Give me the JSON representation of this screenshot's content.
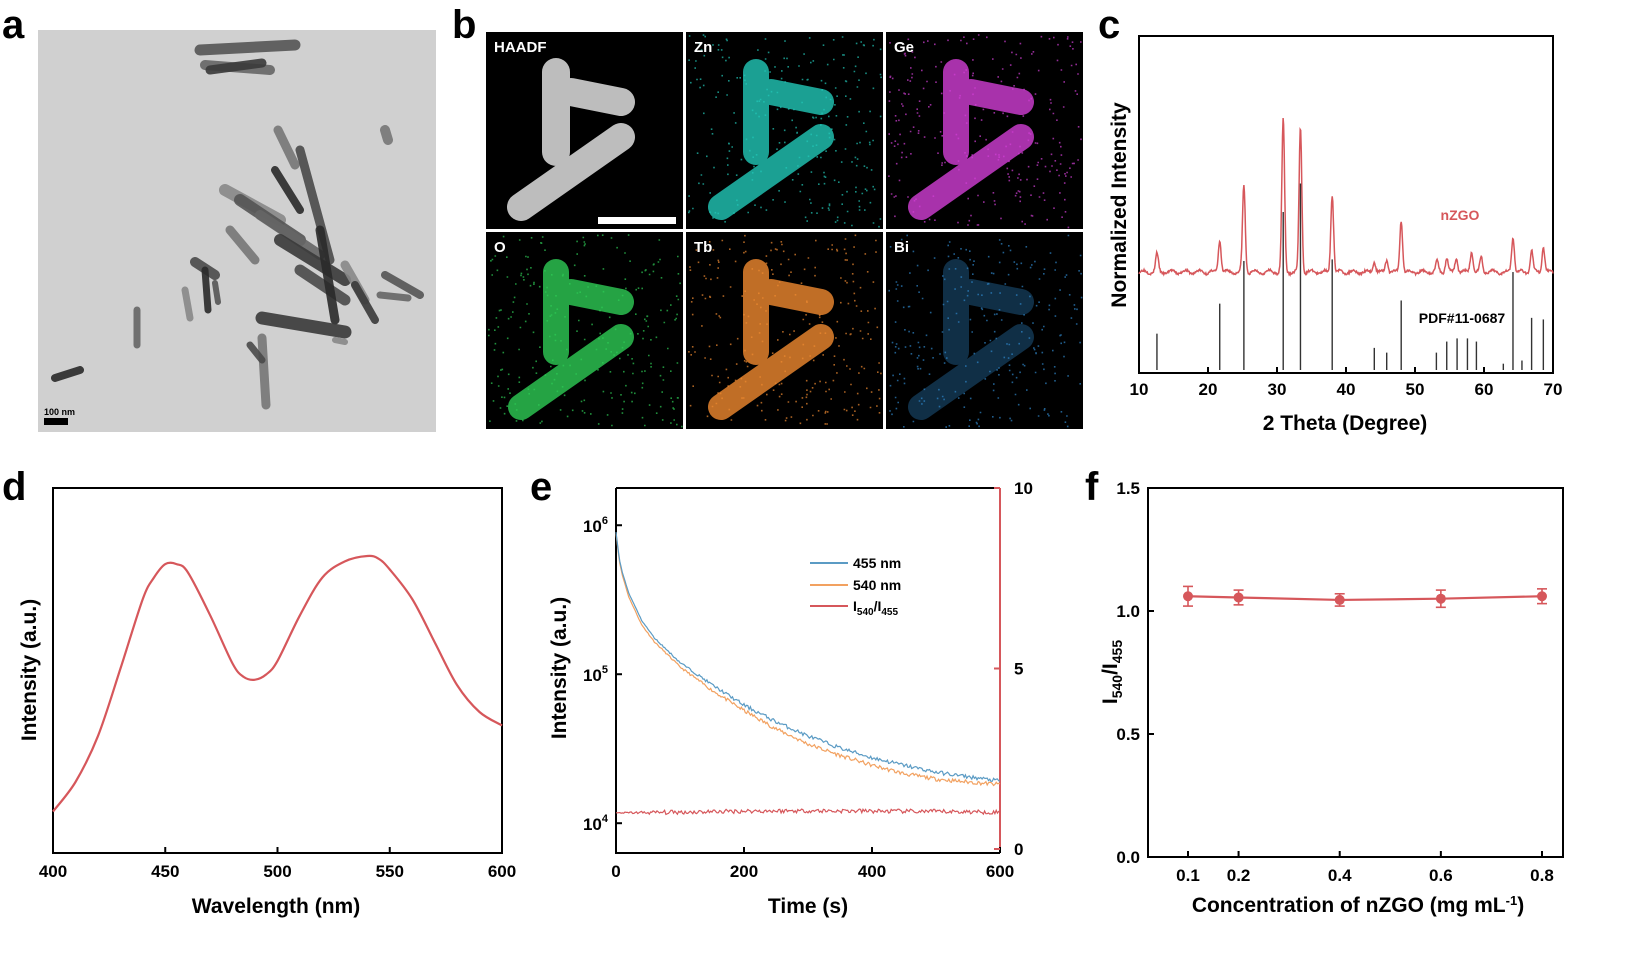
{
  "panels": {
    "a": "a",
    "b": "b",
    "c": "c",
    "d": "d",
    "e": "e",
    "f": "f"
  },
  "colors": {
    "red": "#d6575b",
    "blue": "#5b9bc4",
    "orange": "#f2a160",
    "black": "#000000"
  },
  "panel_a": {
    "scale_label": "100 nm"
  },
  "panel_b": {
    "maps": [
      {
        "label": "HAADF",
        "color": "#e6e6e6"
      },
      {
        "label": "Zn",
        "color": "#22c8b8"
      },
      {
        "label": "Ge",
        "color": "#d23ed6"
      },
      {
        "label": "O",
        "color": "#2ecc55"
      },
      {
        "label": "Tb",
        "color": "#f08a30"
      },
      {
        "label": "Bi",
        "color": "#2f86c9"
      }
    ]
  },
  "chart_data": [
    {
      "id": "c",
      "type": "line",
      "xlabel": "2 Theta (Degree)",
      "ylabel": "Normalized Intensity",
      "xlim": [
        10,
        70
      ],
      "xticks": [
        10,
        20,
        30,
        40,
        50,
        60,
        70
      ],
      "series": [
        {
          "name": "nZGO",
          "color": "#d6575b",
          "peaks": [
            [
              12.6,
              0.1
            ],
            [
              21.7,
              0.18
            ],
            [
              25.2,
              0.48
            ],
            [
              30.9,
              0.85
            ],
            [
              33.4,
              0.8
            ],
            [
              38.0,
              0.43
            ],
            [
              44.1,
              0.06
            ],
            [
              45.9,
              0.07
            ],
            [
              48.0,
              0.29
            ],
            [
              53.2,
              0.06
            ],
            [
              54.6,
              0.08
            ],
            [
              56.0,
              0.08
            ],
            [
              58.2,
              0.12
            ],
            [
              59.6,
              0.08
            ],
            [
              64.2,
              0.2
            ],
            [
              66.9,
              0.12
            ],
            [
              68.6,
              0.14
            ]
          ]
        }
      ],
      "reference": {
        "name": "PDF#11-0687",
        "lines": [
          [
            12.6,
            0.23
          ],
          [
            21.7,
            0.42
          ],
          [
            25.2,
            0.69
          ],
          [
            30.9,
            1.0
          ],
          [
            33.4,
            1.18
          ],
          [
            38.0,
            0.7
          ],
          [
            44.1,
            0.14
          ],
          [
            45.9,
            0.11
          ],
          [
            48.0,
            0.44
          ],
          [
            53.1,
            0.11
          ],
          [
            54.6,
            0.18
          ],
          [
            56.1,
            0.2
          ],
          [
            57.6,
            0.2
          ],
          [
            58.9,
            0.18
          ],
          [
            62.8,
            0.04
          ],
          [
            64.2,
            0.62
          ],
          [
            65.5,
            0.06
          ],
          [
            66.9,
            0.33
          ],
          [
            68.6,
            0.32
          ]
        ]
      }
    },
    {
      "id": "d",
      "type": "line",
      "xlabel": "Wavelength (nm)",
      "ylabel": "Intensity (a.u.)",
      "xlim": [
        400,
        600
      ],
      "xticks": [
        400,
        450,
        500,
        550,
        600
      ],
      "series": [
        {
          "name": "emission",
          "color": "#d6575b",
          "x": [
            400,
            410,
            420,
            430,
            440,
            445,
            450,
            455,
            460,
            470,
            480,
            485,
            490,
            495,
            500,
            510,
            520,
            530,
            540,
            545,
            550,
            560,
            570,
            580,
            590,
            600
          ],
          "y": [
            0.05,
            0.16,
            0.33,
            0.58,
            0.84,
            0.92,
            0.97,
            0.97,
            0.94,
            0.78,
            0.6,
            0.55,
            0.54,
            0.56,
            0.61,
            0.78,
            0.92,
            0.98,
            1.0,
            0.99,
            0.95,
            0.84,
            0.68,
            0.52,
            0.42,
            0.37
          ]
        }
      ]
    },
    {
      "id": "e",
      "type": "line",
      "xlabel": "Time (s)",
      "ylabel": "Intensity (a.u.)",
      "xlim": [
        0,
        600
      ],
      "xticks": [
        0,
        200,
        400,
        600
      ],
      "ylim_log10": [
        3.8,
        6.25
      ],
      "yticks": [
        "10^4",
        "10^5",
        "10^6"
      ],
      "y2lim": [
        0,
        10
      ],
      "y2ticks": [
        0,
        5,
        10
      ],
      "legend": [
        "455 nm",
        "540 nm",
        "I540/I455"
      ],
      "series": [
        {
          "name": "455 nm",
          "color": "#5b9bc4",
          "x": [
            0,
            5,
            10,
            20,
            40,
            60,
            100,
            150,
            200,
            250,
            300,
            350,
            400,
            450,
            500,
            550,
            600
          ],
          "y": [
            900000,
            600000,
            480000,
            350000,
            230000,
            175000,
            120000,
            85000,
            62000,
            48000,
            38500,
            32000,
            27500,
            24500,
            22000,
            20500,
            19200
          ]
        },
        {
          "name": "540 nm",
          "color": "#f2a160",
          "x": [
            0,
            5,
            10,
            20,
            40,
            60,
            100,
            150,
            200,
            250,
            300,
            350,
            400,
            450,
            500,
            550,
            600
          ],
          "y": [
            880000,
            580000,
            460000,
            330000,
            215000,
            165000,
            112000,
            78000,
            57000,
            43000,
            34000,
            28500,
            24500,
            21500,
            19800,
            18900,
            18200
          ]
        },
        {
          "name": "I540/I455",
          "color": "#d6575b",
          "axis": "right",
          "x": [
            0,
            50,
            100,
            200,
            300,
            400,
            500,
            600
          ],
          "y": [
            1.0,
            1.01,
            1.02,
            1.05,
            1.06,
            1.05,
            1.04,
            1.02
          ]
        }
      ]
    },
    {
      "id": "f",
      "type": "scatter",
      "xlabel": "Concentration of nZGO (mg mL⁻¹)",
      "ylabel": "I540/I455",
      "xlim": [
        0,
        0.85
      ],
      "xticks": [
        0.1,
        0.2,
        0.4,
        0.6,
        0.8
      ],
      "ylim": [
        0,
        1.5
      ],
      "yticks": [
        0.0,
        0.5,
        1.0,
        1.5
      ],
      "series": [
        {
          "name": "ratio",
          "color": "#d6575b",
          "x": [
            0.1,
            0.2,
            0.4,
            0.6,
            0.8
          ],
          "y": [
            1.06,
            1.055,
            1.045,
            1.05,
            1.06
          ],
          "err": [
            0.04,
            0.03,
            0.025,
            0.035,
            0.03
          ]
        }
      ]
    }
  ],
  "labels": {
    "c_nzgo": "nZGO",
    "c_pdf": "PDF#11-0687",
    "c_ylabel": "Normalized Intensity",
    "c_xlabel": "2 Theta (Degree)",
    "d_ylabel": "Intensity (a.u.)",
    "d_xlabel": "Wavelength (nm)",
    "e_ylabel": "Intensity (a.u.)",
    "e_xlabel": "Time (s)",
    "e_leg1": "455 nm",
    "e_leg2": "540 nm",
    "e_leg3_main": "I",
    "e_leg3_sub1": "540",
    "e_leg3_sep": "/I",
    "e_leg3_sub2": "455",
    "f_ylabel_main": "I",
    "f_ylabel_sub1": "540",
    "f_ylabel_sep": "/I",
    "f_ylabel_sub2": "455",
    "f_xlabel_main": "Concentration of nZGO (mg mL",
    "f_xlabel_sup": "-1",
    "f_xlabel_end": ")"
  }
}
